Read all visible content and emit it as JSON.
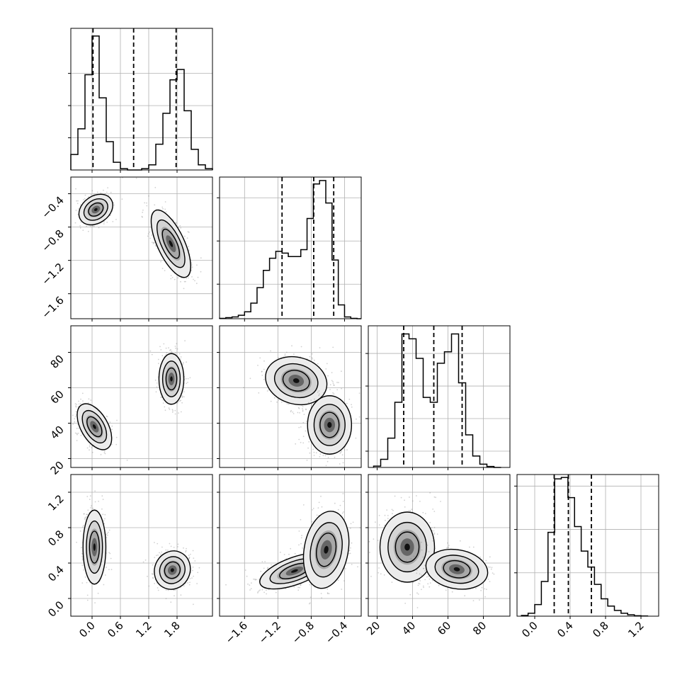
{
  "chart_data": {
    "type": "corner",
    "grid": true,
    "parameters": [
      {
        "range": [
          -0.45,
          2.55
        ],
        "ticks": [
          0.0,
          0.6,
          1.2,
          1.8
        ],
        "tick_labels": [
          "0.0",
          "0.6",
          "1.2",
          "1.8"
        ],
        "quantiles": [
          0.02,
          0.88,
          1.78
        ],
        "hist": {
          "edges": [
            -0.45,
            -0.3,
            -0.15,
            0.0,
            0.15,
            0.3,
            0.45,
            0.6,
            0.75,
            0.9,
            1.05,
            1.2,
            1.35,
            1.5,
            1.65,
            1.8,
            1.95,
            2.1,
            2.25,
            2.4,
            2.55
          ],
          "counts": [
            0.06,
            0.16,
            0.37,
            0.52,
            0.28,
            0.11,
            0.03,
            0.005,
            0.0,
            0.0,
            0.005,
            0.02,
            0.1,
            0.22,
            0.35,
            0.39,
            0.23,
            0.08,
            0.02,
            0.005
          ],
          "ymax": 0.55,
          "yticks": [
            0.125,
            0.25,
            0.375
          ]
        }
      },
      {
        "range": [
          -1.9,
          -0.2
        ],
        "ticks": [
          -1.6,
          -1.2,
          -0.8,
          -0.4
        ],
        "tick_labels": [
          "−1.6",
          "−1.2",
          "−0.8",
          "−0.4"
        ],
        "quantiles": [
          -1.15,
          -0.77,
          -0.53
        ],
        "hist": {
          "edges": [
            -1.9,
            -1.825,
            -1.75,
            -1.675,
            -1.6,
            -1.525,
            -1.45,
            -1.375,
            -1.3,
            -1.225,
            -1.15,
            -1.075,
            -1.0,
            -0.925,
            -0.85,
            -0.775,
            -0.7,
            -0.625,
            -0.55,
            -0.475,
            -0.4,
            -0.325,
            -0.25,
            -0.2
          ],
          "counts": [
            0.002,
            0.006,
            0.01,
            0.02,
            0.04,
            0.09,
            0.18,
            0.28,
            0.35,
            0.39,
            0.38,
            0.36,
            0.36,
            0.4,
            0.58,
            0.78,
            0.8,
            0.67,
            0.34,
            0.08,
            0.01,
            0.002,
            0.0
          ],
          "ymax": 0.82,
          "yticks": [
            0.2,
            0.45,
            0.7
          ]
        }
      },
      {
        "range": [
          15,
          95
        ],
        "ticks": [
          20,
          40,
          60,
          80
        ],
        "tick_labels": [
          "20",
          "40",
          "60",
          "80"
        ],
        "quantiles": [
          35,
          52,
          68
        ],
        "hist": {
          "edges": [
            18,
            22,
            26,
            30,
            34,
            38,
            42,
            46,
            50,
            54,
            58,
            62,
            66,
            70,
            74,
            78,
            82,
            86,
            90
          ],
          "counts": [
            0.008,
            0.05,
            0.18,
            0.4,
            0.82,
            0.79,
            0.67,
            0.43,
            0.4,
            0.64,
            0.71,
            0.82,
            0.52,
            0.2,
            0.07,
            0.02,
            0.006,
            0.0
          ],
          "ymax": 0.87,
          "yticks": [
            0.1,
            0.3,
            0.5,
            0.7
          ]
        }
      },
      {
        "range": [
          -0.2,
          1.4
        ],
        "ticks": [
          0.0,
          0.4,
          0.8,
          1.2
        ],
        "tick_labels": [
          "0.0",
          "0.4",
          "0.8",
          "1.2"
        ],
        "quantiles": [
          0.22,
          0.38,
          0.64
        ],
        "hist": {
          "edges": [
            -0.15,
            -0.075,
            0.0,
            0.075,
            0.15,
            0.225,
            0.3,
            0.375,
            0.45,
            0.525,
            0.6,
            0.675,
            0.75,
            0.825,
            0.9,
            0.975,
            1.05,
            1.125,
            1.2,
            1.275
          ],
          "counts": [
            0.005,
            0.02,
            0.08,
            0.24,
            0.58,
            0.95,
            0.96,
            0.82,
            0.62,
            0.45,
            0.34,
            0.22,
            0.12,
            0.07,
            0.04,
            0.02,
            0.01,
            0.003,
            0.001
          ],
          "ymax": 0.98,
          "yticks": [
            0.3,
            0.6,
            0.9
          ]
        }
      }
    ],
    "pairs": [
      {
        "row": 1,
        "col": 0,
        "modes": [
          {
            "cx": 0.08,
            "cy": -0.59,
            "sx": 0.13,
            "sy": 0.1,
            "rot": 55
          },
          {
            "cx": 1.67,
            "cy": -1.0,
            "sx": 0.13,
            "sy": 0.2,
            "rot": -25
          }
        ]
      },
      {
        "row": 2,
        "col": 0,
        "modes": [
          {
            "cx": 0.05,
            "cy": 38,
            "sx": 0.13,
            "sy": 6.5,
            "rot": -30
          },
          {
            "cx": 1.68,
            "cy": 65,
            "sx": 0.12,
            "sy": 6.5,
            "rot": 0
          }
        ]
      },
      {
        "row": 3,
        "col": 0,
        "modes": [
          {
            "cx": 0.05,
            "cy": 0.58,
            "sx": 0.11,
            "sy": 0.19,
            "rot": 0
          },
          {
            "cx": 1.7,
            "cy": 0.32,
            "sx": 0.17,
            "sy": 0.1,
            "rot": 25
          }
        ]
      },
      {
        "row": 2,
        "col": 1,
        "modes": [
          {
            "cx": -0.98,
            "cy": 64,
            "sx": 0.17,
            "sy": 6,
            "rot": 15
          },
          {
            "cx": -0.58,
            "cy": 39,
            "sx": 0.12,
            "sy": 7.5,
            "rot": 0
          }
        ]
      },
      {
        "row": 3,
        "col": 1,
        "modes": [
          {
            "cx": -1.0,
            "cy": 0.31,
            "sx": 0.2,
            "sy": 0.07,
            "rot": -20
          },
          {
            "cx": -0.62,
            "cy": 0.55,
            "sx": 0.12,
            "sy": 0.2,
            "rot": 10
          }
        ]
      },
      {
        "row": 3,
        "col": 2,
        "modes": [
          {
            "cx": 37,
            "cy": 0.58,
            "sx": 7,
            "sy": 0.18,
            "rot": 0
          },
          {
            "cx": 65,
            "cy": 0.33,
            "sx": 8,
            "sy": 0.1,
            "rot": 10
          }
        ]
      }
    ]
  }
}
